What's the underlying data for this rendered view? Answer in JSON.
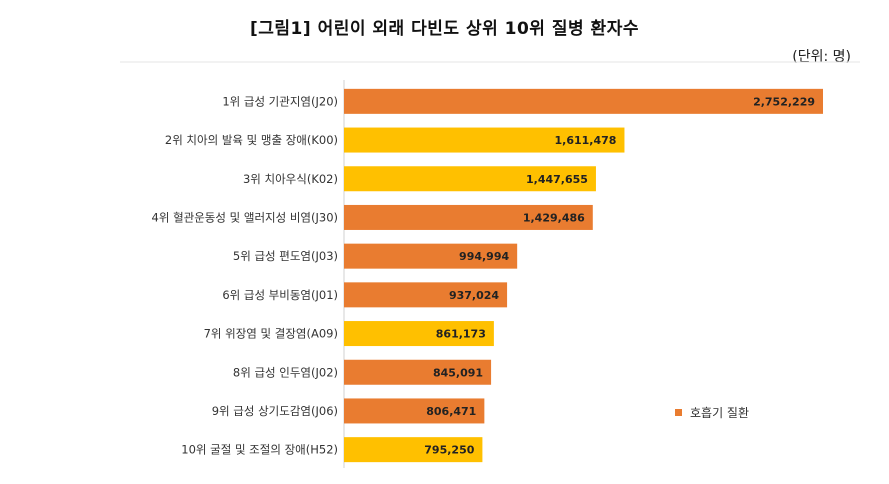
{
  "chart_data": {
    "type": "bar",
    "orientation": "horizontal",
    "title": "[그림1] 어린이 외래 다빈도 상위 10위 질병 환자수",
    "unit": "(단위: 명)",
    "categories": [
      "1위 급성 기관지염(J20)",
      "2위 치아의 발육 및 맹출 장애(K00)",
      "3위 치아우식(K02)",
      "4위 혈관운동성 및 앨러지성 비염(J30)",
      "5위 급성 편도염(J03)",
      "6위 급성 부비동염(J01)",
      "7위 위장염 및 결장염(A09)",
      "8위 급성 인두염(J02)",
      "9위  급성 상기도감염(J06)",
      "10위 굴절 및 조절의 장애(H52)"
    ],
    "values": [
      2752229,
      1611478,
      1447655,
      1429486,
      994994,
      937024,
      861173,
      845091,
      806471,
      795250
    ],
    "value_labels": [
      "2,752,229",
      "1,611,478",
      "1,447,655",
      "1,429,486",
      "994,994",
      "937,024",
      "861,173",
      "845,091",
      "806,471",
      "795,250"
    ],
    "respiratory": [
      true,
      false,
      false,
      true,
      true,
      true,
      false,
      true,
      true,
      false
    ],
    "colors": {
      "respiratory": "#E97C30",
      "other": "#FFC000"
    },
    "legend": {
      "label": "호흡기 질환",
      "placement": "right"
    },
    "grid": false
  }
}
